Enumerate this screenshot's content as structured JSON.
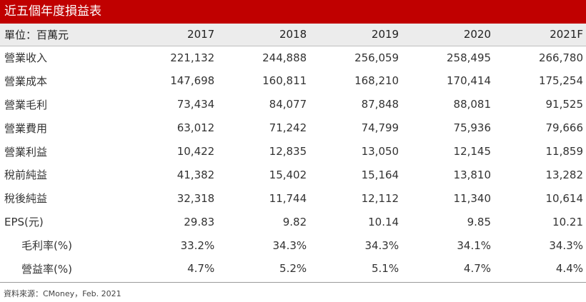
{
  "title": "近五個年度損益表",
  "table": {
    "unit_label": "單位：百萬元",
    "years": [
      "2017",
      "2018",
      "2019",
      "2020",
      "2021F"
    ],
    "rows": [
      {
        "label": "營業收入",
        "indent": false,
        "values": [
          "221,132",
          "244,888",
          "256,059",
          "258,495",
          "266,780"
        ]
      },
      {
        "label": "營業成本",
        "indent": false,
        "values": [
          "147,698",
          "160,811",
          "168,210",
          "170,414",
          "175,254"
        ]
      },
      {
        "label": "營業毛利",
        "indent": false,
        "values": [
          "73,434",
          "84,077",
          "87,848",
          "88,081",
          "91,525"
        ]
      },
      {
        "label": "營業費用",
        "indent": false,
        "values": [
          "63,012",
          "71,242",
          "74,799",
          "75,936",
          "79,666"
        ]
      },
      {
        "label": "營業利益",
        "indent": false,
        "values": [
          "10,422",
          "12,835",
          "13,050",
          "12,145",
          "11,859"
        ]
      },
      {
        "label": "稅前純益",
        "indent": false,
        "values": [
          "41,382",
          "15,402",
          "15,164",
          "13,810",
          "13,282"
        ]
      },
      {
        "label": "稅後純益",
        "indent": false,
        "values": [
          "32,318",
          "11,744",
          "12,112",
          "11,340",
          "10,614"
        ]
      },
      {
        "label": "EPS(元)",
        "indent": false,
        "values": [
          "29.83",
          "9.82",
          "10.14",
          "9.85",
          "10.21"
        ]
      },
      {
        "label": "毛利率(%)",
        "indent": true,
        "values": [
          "33.2%",
          "34.3%",
          "34.3%",
          "34.1%",
          "34.3%"
        ]
      },
      {
        "label": "營益率(%)",
        "indent": true,
        "values": [
          "4.7%",
          "5.2%",
          "5.1%",
          "4.7%",
          "4.4%"
        ]
      }
    ]
  },
  "source": "資料來源：CMoney，Feb. 2021",
  "colors": {
    "title_bg": "#c00000",
    "header_bg": "#ececec"
  }
}
